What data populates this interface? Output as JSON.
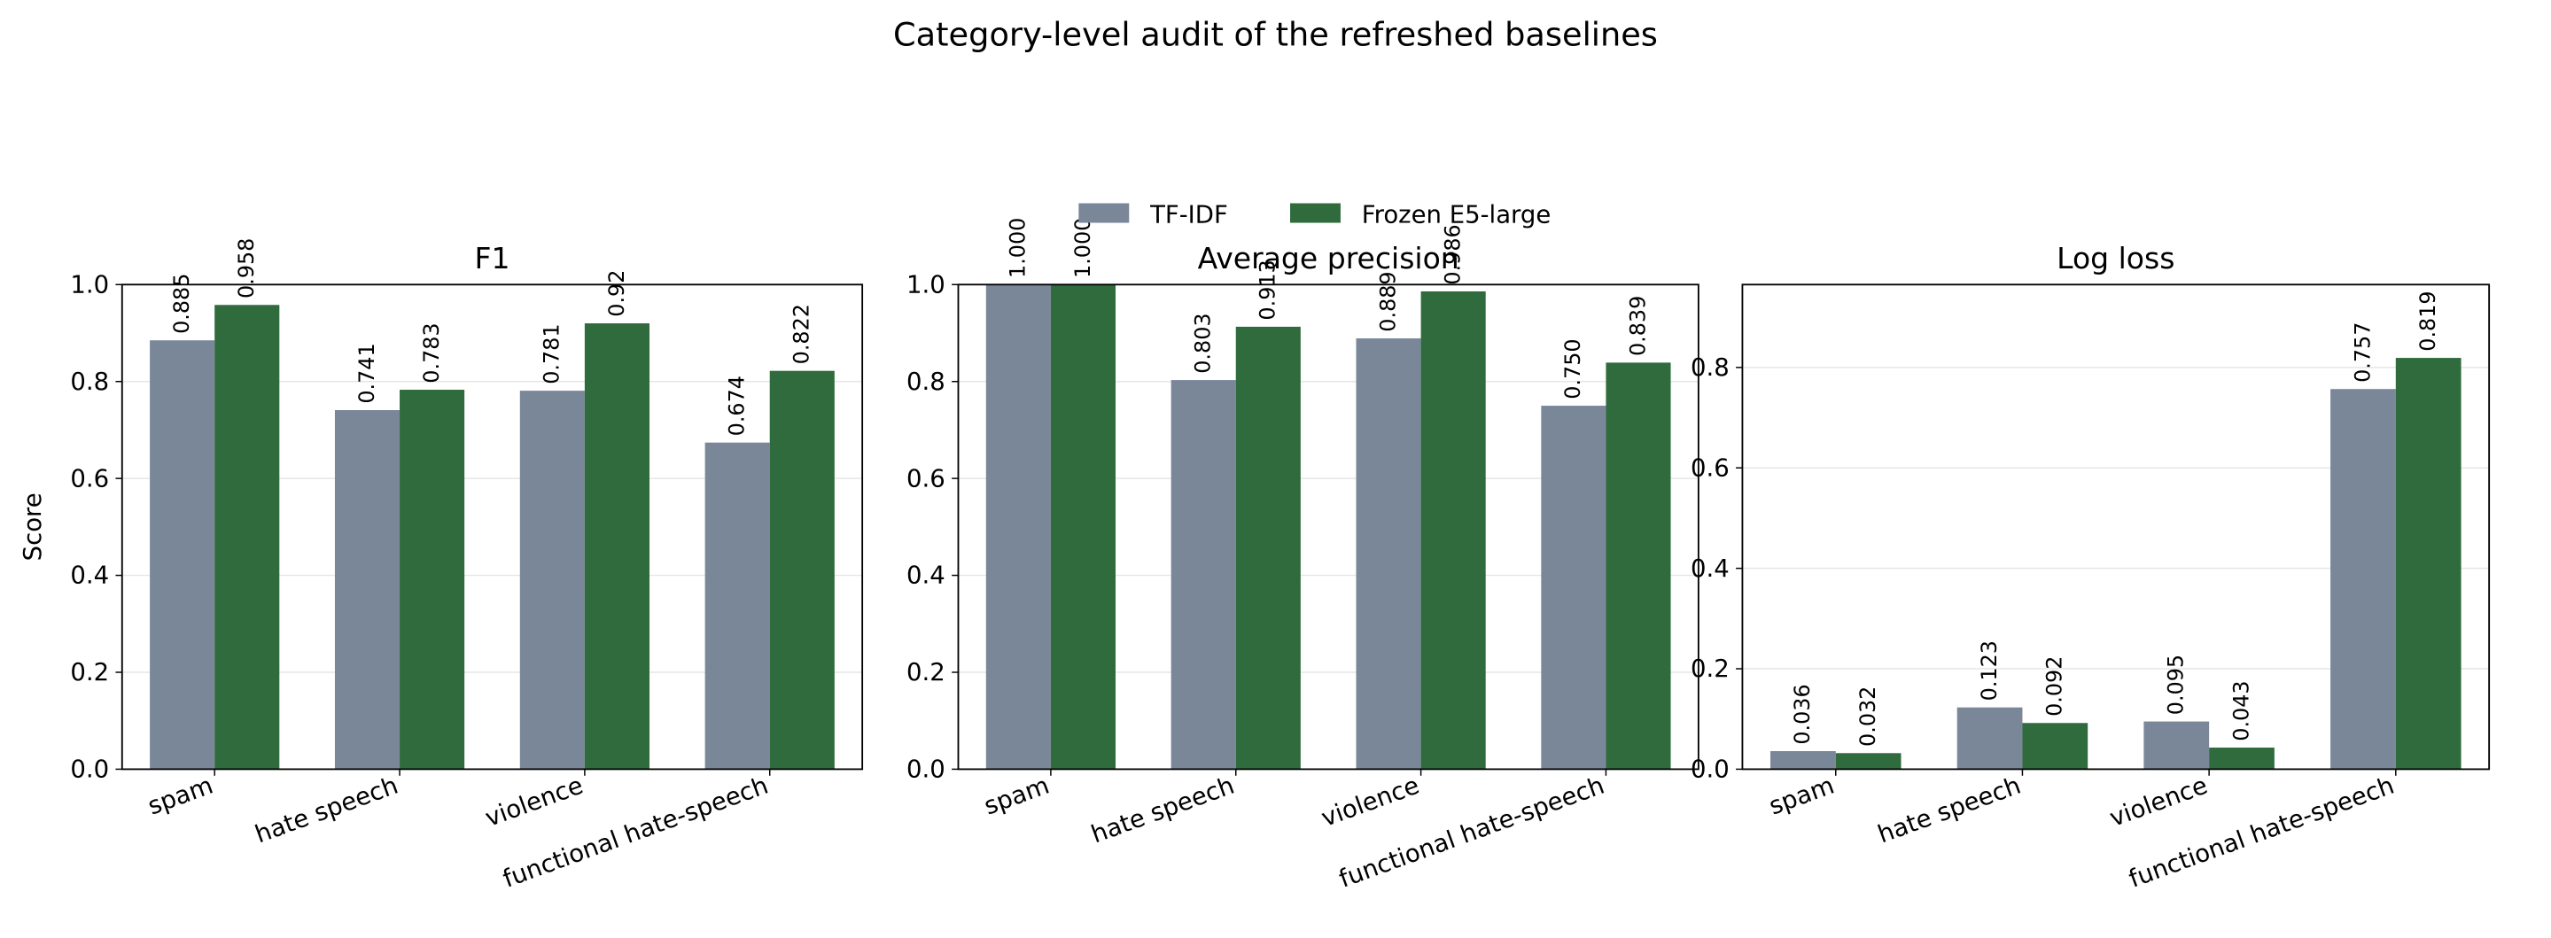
{
  "title": "Category-level audit of the refreshed baselines",
  "chart_data": [
    {
      "type": "bar",
      "title": "F1",
      "ylabel": "Score",
      "categories": [
        "spam",
        "hate speech",
        "violence",
        "functional hate-speech"
      ],
      "series": [
        {
          "name": "TF-IDF",
          "color": "#7a8799",
          "values": [
            0.885,
            0.741,
            0.781,
            0.674
          ]
        },
        {
          "name": "Frozen E5-large",
          "color": "#2f6b3c",
          "values": [
            0.958,
            0.783,
            0.92,
            0.822
          ]
        }
      ],
      "ylim": [
        0,
        1.0
      ],
      "yticks": [
        {
          "value": 0,
          "label": "0.0"
        },
        0.2,
        0.4,
        0.6,
        0.8,
        {
          "value": 1,
          "label": "1.0"
        }
      ],
      "grid": true
    },
    {
      "type": "bar",
      "title": "Average precision",
      "categories": [
        "spam",
        "hate speech",
        "violence",
        "functional hate-speech"
      ],
      "series": [
        {
          "name": "TF-IDF",
          "color": "#7a8799",
          "values": [
            1.0,
            0.803,
            0.889,
            0.75
          ],
          "value_labels": [
            "1.000",
            "0.803",
            "0.889",
            "0.750"
          ]
        },
        {
          "name": "Frozen E5-large",
          "color": "#2f6b3c",
          "values": [
            1.0,
            0.913,
            0.986,
            0.839
          ],
          "value_labels": [
            "1.000",
            "0.913",
            "0.986",
            "0.839"
          ]
        }
      ],
      "ylim": [
        0,
        1.0
      ],
      "yticks": [
        {
          "value": 0,
          "label": "0.0"
        },
        0.2,
        0.4,
        0.6,
        0.8,
        {
          "value": 1,
          "label": "1.0"
        }
      ],
      "grid": true
    },
    {
      "type": "bar",
      "title": "Log loss",
      "categories": [
        "spam",
        "hate speech",
        "violence",
        "functional hate-speech"
      ],
      "series": [
        {
          "name": "TF-IDF",
          "color": "#7a8799",
          "values": [
            0.036,
            0.123,
            0.095,
            0.757
          ]
        },
        {
          "name": "Frozen E5-large",
          "color": "#2f6b3c",
          "values": [
            0.032,
            0.092,
            0.043,
            0.819
          ]
        }
      ],
      "ylim": [
        0,
        0.965
      ],
      "yticks": [
        {
          "value": 0,
          "label": "0.0"
        },
        0.2,
        0.4,
        0.6,
        0.8
      ],
      "grid": true
    }
  ]
}
